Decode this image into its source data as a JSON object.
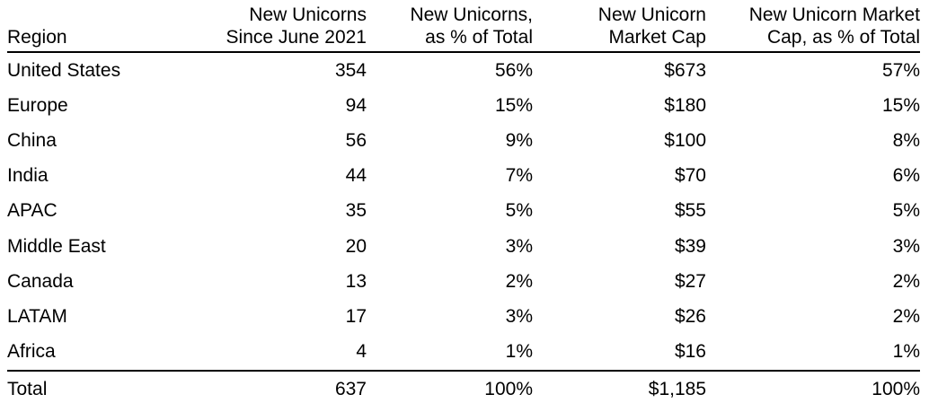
{
  "table": {
    "headers": [
      {
        "key": "region",
        "lines": [
          "Region"
        ]
      },
      {
        "key": "new_unicorns",
        "lines": [
          "New Unicorns",
          "Since June 2021"
        ]
      },
      {
        "key": "new_unicorns_pct",
        "lines": [
          "New Unicorns,",
          "as % of Total"
        ]
      },
      {
        "key": "market_cap",
        "lines": [
          "New Unicorn",
          "Market Cap"
        ]
      },
      {
        "key": "market_cap_pct",
        "lines": [
          "New Unicorn Market",
          "Cap, as % of Total"
        ]
      }
    ],
    "rows": [
      {
        "region": "United States",
        "new_unicorns": "354",
        "new_unicorns_pct": "56%",
        "market_cap": "$673",
        "market_cap_pct": "57%"
      },
      {
        "region": "Europe",
        "new_unicorns": "94",
        "new_unicorns_pct": "15%",
        "market_cap": "$180",
        "market_cap_pct": "15%"
      },
      {
        "region": "China",
        "new_unicorns": "56",
        "new_unicorns_pct": "9%",
        "market_cap": "$100",
        "market_cap_pct": "8%"
      },
      {
        "region": "India",
        "new_unicorns": "44",
        "new_unicorns_pct": "7%",
        "market_cap": "$70",
        "market_cap_pct": "6%"
      },
      {
        "region": "APAC",
        "new_unicorns": "35",
        "new_unicorns_pct": "5%",
        "market_cap": "$55",
        "market_cap_pct": "5%"
      },
      {
        "region": "Middle East",
        "new_unicorns": "20",
        "new_unicorns_pct": "3%",
        "market_cap": "$39",
        "market_cap_pct": "3%"
      },
      {
        "region": "Canada",
        "new_unicorns": "13",
        "new_unicorns_pct": "2%",
        "market_cap": "$27",
        "market_cap_pct": "2%"
      },
      {
        "region": "LATAM",
        "new_unicorns": "17",
        "new_unicorns_pct": "3%",
        "market_cap": "$26",
        "market_cap_pct": "2%"
      },
      {
        "region": "Africa",
        "new_unicorns": "4",
        "new_unicorns_pct": "1%",
        "market_cap": "$16",
        "market_cap_pct": "1%"
      }
    ],
    "total": {
      "region": "Total",
      "new_unicorns": "637",
      "new_unicorns_pct": "100%",
      "market_cap": "$1,185",
      "market_cap_pct": "100%"
    }
  }
}
